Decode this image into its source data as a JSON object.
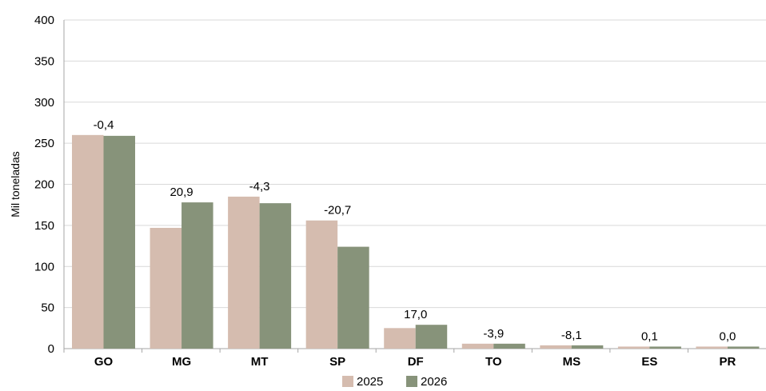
{
  "chart_data": {
    "type": "bar",
    "title": "",
    "xlabel": "",
    "ylabel": "Mil toneladas",
    "ylim": [
      0,
      400
    ],
    "yticks": [
      0,
      50,
      100,
      150,
      200,
      250,
      300,
      350,
      400
    ],
    "grid": true,
    "legend_position": "bottom-center",
    "categories": [
      "GO",
      "MG",
      "MT",
      "SP",
      "DF",
      "TO",
      "MS",
      "ES",
      "PR"
    ],
    "series": [
      {
        "name": "2025",
        "color": "#d5bcaf",
        "values": [
          260,
          147,
          185,
          156,
          25,
          6,
          4,
          2.5,
          2.5
        ]
      },
      {
        "name": "2026",
        "color": "#87937a",
        "values": [
          259,
          178,
          177,
          124,
          29,
          6,
          4,
          2.5,
          2.5
        ]
      }
    ],
    "annotations": [
      "-0,4",
      "20,9",
      "-4,3",
      "-20,7",
      "17,0",
      "-3,9",
      "-8,1",
      "0,1",
      "0,0"
    ]
  }
}
